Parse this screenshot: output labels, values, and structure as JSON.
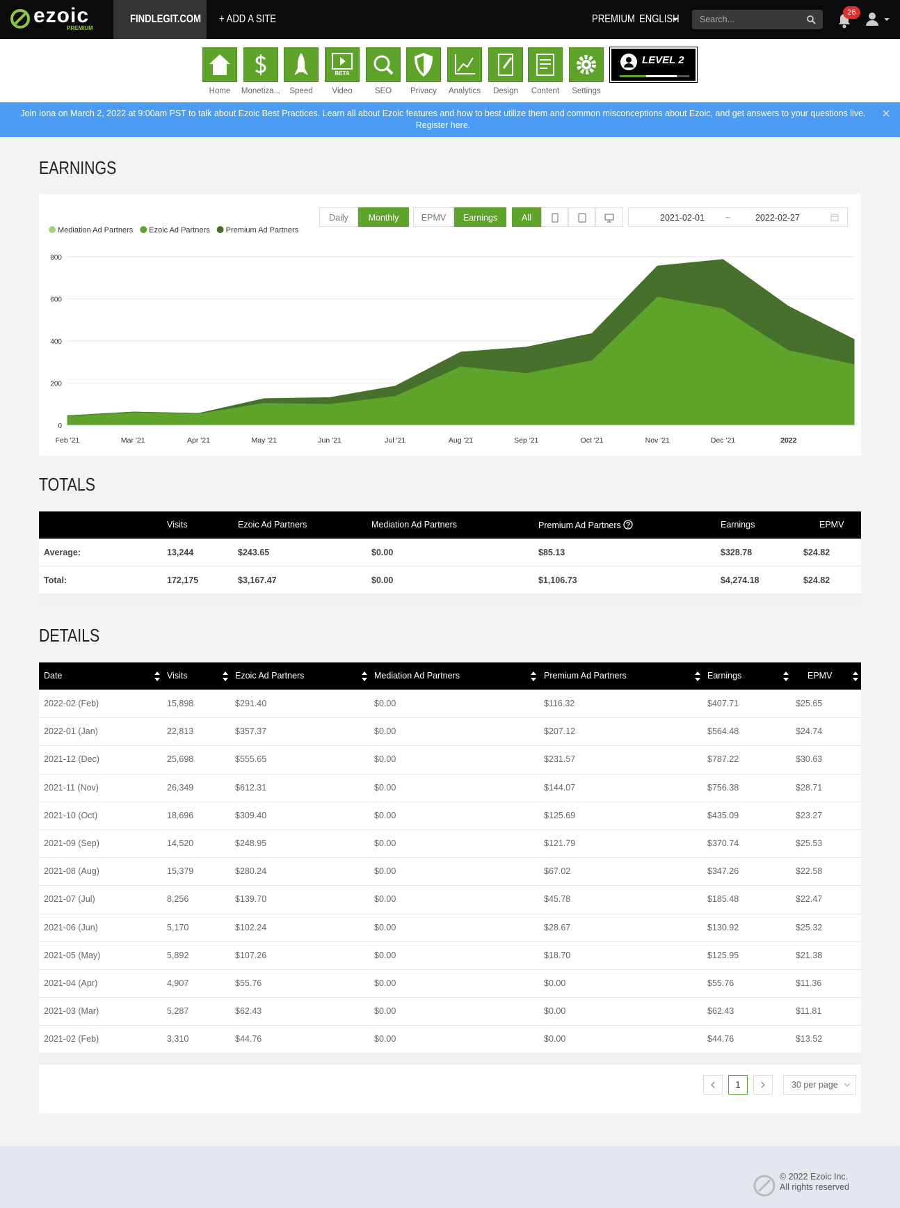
{
  "nav": {
    "logo": "ezoic",
    "tier": "PREMIUM",
    "site": "FINDLEGIT.COM",
    "add_site": "+ ADD A SITE",
    "premium": "PREMIUM",
    "language": "ENGLISH",
    "search_placeholder": "Search...",
    "notifications": "26"
  },
  "toolbar": {
    "items": [
      "Home",
      "Monetiza...",
      "Speed",
      "Video",
      "SEO",
      "Privacy",
      "Analytics",
      "Design",
      "Content",
      "Settings"
    ],
    "video_badge": "BETA",
    "level": "LEVEL 2"
  },
  "banner": {
    "text": "Join Iona on March 2, 2022 at 9:00am PST to talk about Ezoic Best Practices. Learn all about Ezoic features and how to best utilize them and common misconceptions about Ezoic, and get answers to your questions live.",
    "link": "Register here."
  },
  "earnings": {
    "heading": "EARNINGS",
    "intervals": [
      "Daily",
      "Monthly"
    ],
    "metrics": [
      "EPMV",
      "Earnings"
    ],
    "device": "All",
    "date_from": "2021-02-01",
    "date_sep": "~",
    "date_to": "2022-02-27"
  },
  "chart_data": {
    "type": "area",
    "stacked": true,
    "categories": [
      "Feb '21",
      "Mar '21",
      "Apr '21",
      "May '21",
      "Jun '21",
      "Jul '21",
      "Aug '21",
      "Sep '21",
      "Oct '21",
      "Nov '21",
      "Dec '21",
      "2022",
      null
    ],
    "series": [
      {
        "name": "Mediation Ad Partners",
        "color": "#9fd47c",
        "values": [
          0,
          0,
          0,
          0,
          0,
          0,
          0,
          0,
          0,
          0,
          0,
          0,
          0
        ]
      },
      {
        "name": "Ezoic Ad Partners",
        "color": "#5ea42b",
        "values": [
          44.76,
          62.43,
          55.76,
          107.26,
          102.24,
          139.7,
          280.24,
          248.95,
          309.4,
          612.31,
          555.65,
          357.37,
          291.4
        ]
      },
      {
        "name": "Premium Ad Partners",
        "color": "#46702b",
        "values": [
          0,
          0,
          0,
          18.7,
          28.67,
          45.78,
          67.02,
          121.79,
          125.69,
          144.07,
          231.57,
          207.12,
          116.32
        ]
      }
    ],
    "ylim": [
      0,
      800
    ],
    "yticks": [
      0,
      200,
      400,
      600,
      800
    ],
    "grid": true,
    "legend": "top-left"
  },
  "totals": {
    "heading": "TOTALS",
    "columns": [
      "Visits",
      "Ezoic Ad Partners",
      "Mediation Ad Partners",
      "Premium Ad Partners",
      "Earnings",
      "EPMV"
    ],
    "rows": [
      [
        "Average:",
        "13,244",
        "$243.65",
        "$0.00",
        "$85.13",
        "$328.78",
        "$24.82"
      ],
      [
        "Total:",
        "172,175",
        "$3,167.47",
        "$0.00",
        "$1,106.73",
        "$4,274.18",
        "$24.82"
      ]
    ]
  },
  "details": {
    "heading": "DETAILS",
    "columns": [
      "Date",
      "Visits",
      "Ezoic Ad Partners",
      "Mediation Ad Partners",
      "Premium Ad Partners",
      "Earnings",
      "EPMV"
    ],
    "rows": [
      [
        "2022-02 (Feb)",
        "15,898",
        "$291.40",
        "$0.00",
        "$116.32",
        "$407.71",
        "$25.65"
      ],
      [
        "2022-01 (Jan)",
        "22,813",
        "$357.37",
        "$0.00",
        "$207.12",
        "$564.48",
        "$24.74"
      ],
      [
        "2021-12 (Dec)",
        "25,698",
        "$555.65",
        "$0.00",
        "$231.57",
        "$787.22",
        "$30.63"
      ],
      [
        "2021-11 (Nov)",
        "26,349",
        "$612.31",
        "$0.00",
        "$144.07",
        "$756.38",
        "$28.71"
      ],
      [
        "2021-10 (Oct)",
        "18,696",
        "$309.40",
        "$0.00",
        "$125.69",
        "$435.09",
        "$23.27"
      ],
      [
        "2021-09 (Sep)",
        "14,520",
        "$248.95",
        "$0.00",
        "$121.79",
        "$370.74",
        "$25.53"
      ],
      [
        "2021-08 (Aug)",
        "15,379",
        "$280.24",
        "$0.00",
        "$67.02",
        "$347.26",
        "$22.58"
      ],
      [
        "2021-07 (Jul)",
        "8,256",
        "$139.70",
        "$0.00",
        "$45.78",
        "$185.48",
        "$22.47"
      ],
      [
        "2021-06 (Jun)",
        "5,170",
        "$102.24",
        "$0.00",
        "$28.67",
        "$130.92",
        "$25.32"
      ],
      [
        "2021-05 (May)",
        "5,892",
        "$107.26",
        "$0.00",
        "$18.70",
        "$125.95",
        "$21.38"
      ],
      [
        "2021-04 (Apr)",
        "4,907",
        "$55.76",
        "$0.00",
        "$0.00",
        "$55.76",
        "$11.36"
      ],
      [
        "2021-03 (Mar)",
        "5,287",
        "$62.43",
        "$0.00",
        "$0.00",
        "$62.43",
        "$11.81"
      ],
      [
        "2021-02 (Feb)",
        "3,310",
        "$44.76",
        "$0.00",
        "$0.00",
        "$44.76",
        "$13.52"
      ]
    ],
    "page": "1",
    "per_page": "30 per page"
  },
  "footer": {
    "copyright": "© 2022 Ezoic Inc.",
    "rights": "All rights reserved"
  }
}
